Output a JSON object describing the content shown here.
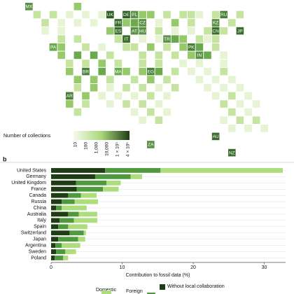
{
  "map": {
    "labels": [
      "MX",
      "UK",
      "DE",
      "PL",
      "RU",
      "FR",
      "CZ",
      "KZ",
      "ES",
      "AT",
      "HU",
      "CN",
      "JP",
      "IT",
      "TR",
      "PA",
      "PK",
      "IN",
      "BR",
      "MA",
      "EG",
      "AR",
      "AU",
      "ZA",
      "NZ"
    ],
    "legend_title": "Number of collections",
    "legend_ticks": [
      "10",
      "100",
      "1,000",
      "10,000",
      "1 × 10⁵",
      "4 × 10⁵"
    ]
  },
  "chart_data": {
    "type": "stacked_barh",
    "panel_label": "b",
    "x_label": "Contribution to fossil data (%)",
    "categories": [
      "United States",
      "Germany",
      "United Kingdom",
      "France",
      "Canada",
      "Russia",
      "China",
      "Australia",
      "Italy",
      "Spain",
      "Switzerland",
      "Japan",
      "Argentina",
      "Sweden",
      "Poland"
    ],
    "series": [
      {
        "name": "Without local collaboration",
        "color": "#1f3d14",
        "values": [
          7.6,
          6.2,
          3.5,
          3.6,
          2.4,
          1.5,
          0.7,
          2.4,
          1.2,
          1.0,
          2.6,
          1.0,
          0.6,
          0.7,
          0.5
        ]
      },
      {
        "name": "Foreign",
        "color": "#4f9a3f",
        "values": [
          7.8,
          5.0,
          4.3,
          3.7,
          1.8,
          1.8,
          0.8,
          1.5,
          2.0,
          1.4,
          2.0,
          2.8,
          0.9,
          1.3,
          1.2
        ]
      },
      {
        "name": "Domestic",
        "color": "#aedd7e",
        "values": [
          17.2,
          1.6,
          2.0,
          2.2,
          2.2,
          3.3,
          3.5,
          2.6,
          3.3,
          2.7,
          0.3,
          1.0,
          2.6,
          1.5,
          0.7
        ]
      }
    ],
    "xlim": [
      0,
      33
    ],
    "xticks": [
      0,
      10,
      20,
      30
    ]
  }
}
